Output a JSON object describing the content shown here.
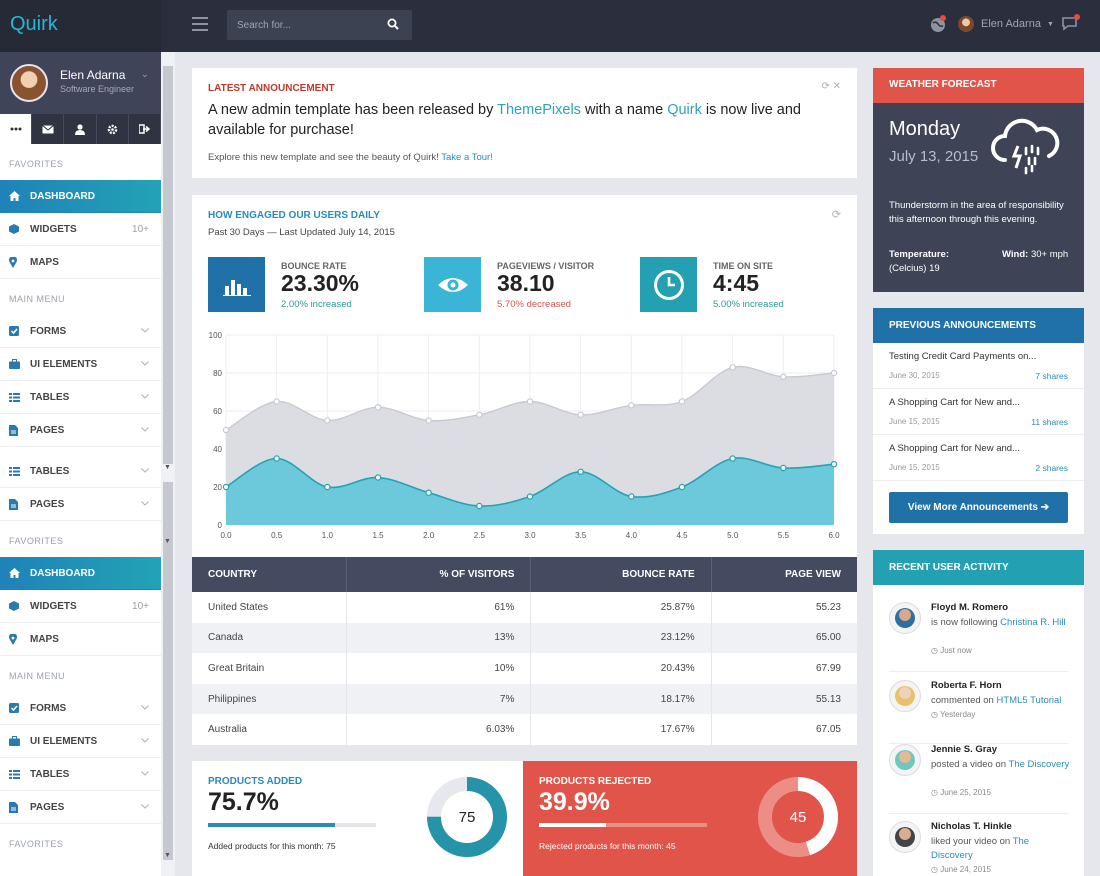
{
  "app": {
    "logo": "Quirk"
  },
  "topbar": {
    "search_placeholder": "Search for...",
    "user_name": "Elen Adarna"
  },
  "colors": {
    "accent_teal": "#24b8d6",
    "primary_blue": "#2171a9",
    "danger_red": "#e0544a",
    "dark_nav": "#2b2f3d"
  },
  "sidebar": {
    "profile": {
      "name": "Elen Adarna",
      "role": "Software Engineer"
    },
    "tabs": [
      {
        "icon": "ellipsis-icon"
      },
      {
        "icon": "mail-icon"
      },
      {
        "icon": "user-icon"
      },
      {
        "icon": "gear-icon"
      },
      {
        "icon": "sign-out-icon"
      }
    ],
    "groups": [
      {
        "title": "FAVORITES"
      },
      {
        "title": "MAIN MENU"
      },
      {
        "title": "FAVORITES"
      },
      {
        "title": "MAIN MENU"
      },
      {
        "title": "FAVORITES"
      }
    ],
    "items": [
      {
        "label": "DASHBOARD",
        "icon": "home-icon"
      },
      {
        "label": "WIDGETS",
        "icon": "cube-icon",
        "badge": "10+"
      },
      {
        "label": "MAPS",
        "icon": "map-marker-icon"
      },
      {
        "label": "FORMS",
        "icon": "check-square-icon"
      },
      {
        "label": "UI ELEMENTS",
        "icon": "briefcase-icon"
      },
      {
        "label": "TABLES",
        "icon": "table-icon"
      },
      {
        "label": "PAGES",
        "icon": "file-icon"
      },
      {
        "label": "TABLES",
        "icon": "table-icon"
      },
      {
        "label": "PAGES",
        "icon": "file-icon"
      },
      {
        "label": "DASHBOARD",
        "icon": "home-icon"
      },
      {
        "label": "WIDGETS",
        "icon": "cube-icon",
        "badge": "10+"
      },
      {
        "label": "MAPS",
        "icon": "map-marker-icon"
      },
      {
        "label": "FORMS",
        "icon": "check-square-icon"
      },
      {
        "label": "UI ELEMENTS",
        "icon": "briefcase-icon"
      },
      {
        "label": "TABLES",
        "icon": "table-icon"
      },
      {
        "label": "PAGES",
        "icon": "file-icon"
      }
    ]
  },
  "announcement": {
    "title": "LATEST ANNOUNCEMENT",
    "line_a": "A new admin template has been released by ",
    "brand": "ThemePixels",
    "line_b": " with a name ",
    "name": "Quirk",
    "line_c": " is now live and available for purchase!",
    "sub": "Explore this new template and see the beauty of Quirk! ",
    "link": "Take a Tour!"
  },
  "engagement": {
    "title": "HOW ENGAGED OUR USERS DAILY",
    "subtitle": "Past 30 Days — Last Updated July 14, 2015",
    "stats": [
      {
        "label": "BOUNCE RATE",
        "value": "23.30%",
        "change": "2.00% increased",
        "icon": "bar-chart-icon",
        "color": "#2171a9",
        "change_color": "#2a9b8f"
      },
      {
        "label": "PAGEVIEWS / VISITOR",
        "value": "38.10",
        "change": "5.70% decreased",
        "icon": "eye-icon",
        "color": "#3bb5d6",
        "change_color": "#d9534f"
      },
      {
        "label": "TIME ON SITE",
        "value": "4:45",
        "change": "5.00% increased",
        "icon": "clock-icon",
        "color": "#23a0b2",
        "change_color": "#2a9b8f"
      }
    ],
    "table": {
      "headers": [
        "COUNTRY",
        "% OF VISITORS",
        "BOUNCE RATE",
        "PAGE VIEW"
      ],
      "rows": [
        [
          "United States",
          "61%",
          "25.87%",
          "55.23"
        ],
        [
          "Canada",
          "13%",
          "23.12%",
          "65.00"
        ],
        [
          "Great Britain",
          "10%",
          "20.43%",
          "67.99"
        ],
        [
          "Philippines",
          "7%",
          "18.17%",
          "55.13"
        ],
        [
          "Australia",
          "6.03%",
          "17.67%",
          "67.05"
        ]
      ]
    }
  },
  "chart_data": {
    "type": "area",
    "x": [
      0,
      0.5,
      1,
      1.5,
      2,
      2.5,
      3,
      3.5,
      4,
      4.5,
      5,
      5.5,
      6
    ],
    "xticks": [
      "0.0",
      "0.5",
      "1.0",
      "1.5",
      "2.0",
      "2.5",
      "3.0",
      "3.5",
      "4.0",
      "4.5",
      "5.0",
      "5.5",
      "6.0"
    ],
    "yticks": [
      "0",
      "20",
      "40",
      "60",
      "80",
      "100"
    ],
    "xlim": [
      0,
      6
    ],
    "ylim": [
      0,
      100
    ],
    "grid": true,
    "series": [
      {
        "values": [
          50,
          65,
          55,
          62,
          55,
          58,
          65,
          58,
          63,
          65,
          83,
          78,
          80
        ],
        "color": "#dcdde3",
        "line": "#c8cad2"
      },
      {
        "values": [
          20,
          35,
          20,
          25,
          17,
          10,
          15,
          28,
          15,
          20,
          35,
          30,
          32
        ],
        "color": "#6cc9db",
        "line": "#23a3b5"
      }
    ]
  },
  "products": {
    "added": {
      "title": "PRODUCTS ADDED",
      "value": "75.7%",
      "fill": 0.757,
      "note": "Added products for this month: 75",
      "count": "75",
      "donut_fraction": 0.75
    },
    "rejected": {
      "title": "PRODUCTS REJECTED",
      "value": "39.9%",
      "fill": 0.399,
      "note": "Rejected products for this month: 45",
      "count": "45",
      "donut_fraction": 0.45
    }
  },
  "weather": {
    "title": "WEATHER FORECAST",
    "day": "Monday",
    "date": "July 13, 2015",
    "desc": "Thunderstorm in the area of responsibility this afternoon through this evening.",
    "temp_label": "Temperature:",
    "temp_value": "(Celcius) 19",
    "wind_label": "Wind:",
    "wind_value": "30+ mph",
    "icon": "thunderstorm-cloud-icon"
  },
  "previous": {
    "title": "PREVIOUS ANNOUNCEMENTS",
    "items": [
      {
        "title": "Testing Credit Card Payments on...",
        "date": "June 30, 2015",
        "shares": "7 shares"
      },
      {
        "title": "A Shopping Cart for New and...",
        "date": "June 15, 2015",
        "shares": "11 shares"
      },
      {
        "title": "A Shopping Cart for New and...",
        "date": "June 15, 2015",
        "shares": "2 shares"
      }
    ],
    "button": "View More Announcements"
  },
  "activity": {
    "title": "RECENT USER ACTIVITY",
    "items": [
      {
        "name": "Floyd M. Romero",
        "text": "is now following ",
        "link": "Christina R. Hill",
        "time": "Just now"
      },
      {
        "name": "Roberta F. Horn",
        "text": "commented on ",
        "link": "HTML5 Tutorial",
        "time": "Yesterday"
      },
      {
        "name": "Jennie S. Gray",
        "text": "posted a video on ",
        "link": "The Discovery",
        "time": "June 25, 2015"
      },
      {
        "name": "Nicholas T. Hinkle",
        "text": "liked your video on ",
        "link": "The Discovery",
        "time": "June 24, 2015"
      }
    ]
  }
}
